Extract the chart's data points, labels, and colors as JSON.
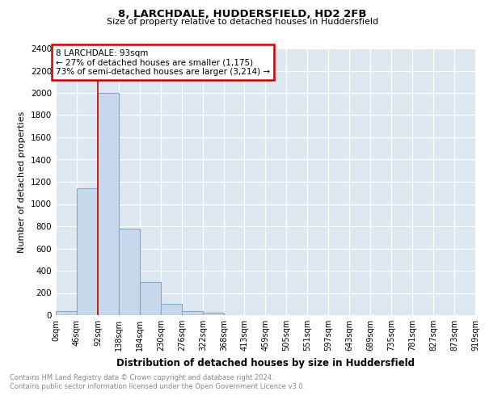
{
  "title1": "8, LARCHDALE, HUDDERSFIELD, HD2 2FB",
  "title2": "Size of property relative to detached houses in Huddersfield",
  "xlabel": "Distribution of detached houses by size in Huddersfield",
  "ylabel": "Number of detached properties",
  "bar_values": [
    35,
    1140,
    2000,
    780,
    295,
    100,
    40,
    20,
    0,
    0,
    0,
    0,
    0,
    0,
    0,
    0,
    0,
    0,
    0,
    0
  ],
  "bin_edges": [
    0,
    46,
    92,
    138,
    184,
    230,
    276,
    322,
    368,
    413,
    459,
    505,
    551,
    597,
    643,
    689,
    735,
    781,
    827,
    873,
    919
  ],
  "tick_labels": [
    "0sqm",
    "46sqm",
    "92sqm",
    "138sqm",
    "184sqm",
    "230sqm",
    "276sqm",
    "322sqm",
    "368sqm",
    "413sqm",
    "459sqm",
    "505sqm",
    "551sqm",
    "597sqm",
    "643sqm",
    "689sqm",
    "735sqm",
    "781sqm",
    "827sqm",
    "873sqm",
    "919sqm"
  ],
  "bar_color": "#c5d8ec",
  "bar_edge_color": "#7aadd4",
  "property_line_x": 92,
  "property_line_color": "#cc0000",
  "annotation_text": "8 LARCHDALE: 93sqm\n← 27% of detached houses are smaller (1,175)\n73% of semi-detached houses are larger (3,214) →",
  "annotation_box_color": "#cc0000",
  "ylim": [
    0,
    2400
  ],
  "yticks": [
    0,
    200,
    400,
    600,
    800,
    1000,
    1200,
    1400,
    1600,
    1800,
    2000,
    2200,
    2400
  ],
  "footnote1": "Contains HM Land Registry data © Crown copyright and database right 2024.",
  "footnote2": "Contains public sector information licensed under the Open Government Licence v3.0.",
  "plot_bg_color": "#dde8f0",
  "grid_color": "#ffffff"
}
